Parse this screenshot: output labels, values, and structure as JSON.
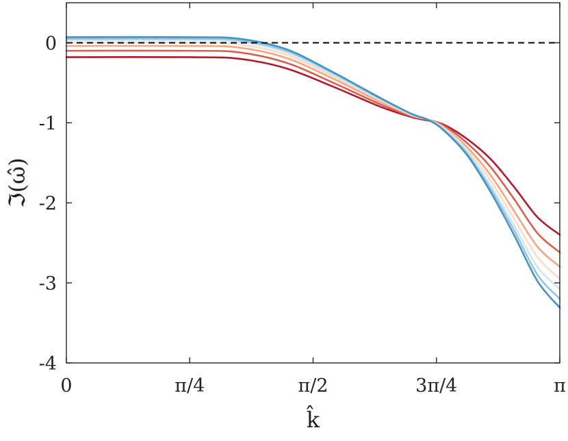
{
  "chart_data": {
    "type": "line",
    "xlabel": "k̂",
    "ylabel": "ℑ(ω̂)",
    "xlim": [
      0,
      3.14159
    ],
    "ylim": [
      -4,
      0.5
    ],
    "xticks": [
      {
        "value": 0,
        "label": "0"
      },
      {
        "value": 0.7854,
        "label": "π/4"
      },
      {
        "value": 1.5708,
        "label": "π/2"
      },
      {
        "value": 2.3562,
        "label": "3π/4"
      },
      {
        "value": 3.14159,
        "label": "π"
      }
    ],
    "yticks": [
      {
        "value": 0,
        "label": "0"
      },
      {
        "value": -1,
        "label": "-1"
      },
      {
        "value": -2,
        "label": "-2"
      },
      {
        "value": -3,
        "label": "-3"
      },
      {
        "value": -4,
        "label": "-4"
      }
    ],
    "grid": false,
    "reference_line": {
      "y": 0,
      "style": "dashed",
      "color": "#000000"
    },
    "series": [
      {
        "color": "#b2182b",
        "values": [
          [
            0,
            -0.18
          ],
          [
            0.785,
            -0.18
          ],
          [
            1.1,
            -0.2
          ],
          [
            1.4,
            -0.32
          ],
          [
            1.7,
            -0.55
          ],
          [
            2.0,
            -0.8
          ],
          [
            2.2,
            -0.93
          ],
          [
            2.3,
            -0.97
          ],
          [
            2.4,
            -1.02
          ],
          [
            2.55,
            -1.2
          ],
          [
            2.7,
            -1.45
          ],
          [
            2.85,
            -1.8
          ],
          [
            3.0,
            -2.18
          ],
          [
            3.142,
            -2.4
          ]
        ]
      },
      {
        "color": "#d6604d",
        "values": [
          [
            0,
            -0.1
          ],
          [
            0.785,
            -0.1
          ],
          [
            1.1,
            -0.12
          ],
          [
            1.4,
            -0.25
          ],
          [
            1.7,
            -0.5
          ],
          [
            2.0,
            -0.77
          ],
          [
            2.2,
            -0.92
          ],
          [
            2.3,
            -0.96
          ],
          [
            2.4,
            -1.03
          ],
          [
            2.55,
            -1.25
          ],
          [
            2.7,
            -1.55
          ],
          [
            2.85,
            -1.95
          ],
          [
            3.0,
            -2.38
          ],
          [
            3.142,
            -2.62
          ]
        ]
      },
      {
        "color": "#f4a582",
        "values": [
          [
            0,
            -0.04
          ],
          [
            0.785,
            -0.04
          ],
          [
            1.1,
            -0.06
          ],
          [
            1.4,
            -0.19
          ],
          [
            1.7,
            -0.45
          ],
          [
            2.0,
            -0.74
          ],
          [
            2.2,
            -0.91
          ],
          [
            2.3,
            -0.96
          ],
          [
            2.4,
            -1.05
          ],
          [
            2.55,
            -1.3
          ],
          [
            2.7,
            -1.65
          ],
          [
            2.85,
            -2.1
          ],
          [
            3.0,
            -2.55
          ],
          [
            3.142,
            -2.8
          ]
        ]
      },
      {
        "color": "#fddbc7",
        "values": [
          [
            0,
            0.0
          ],
          [
            0.785,
            0.0
          ],
          [
            1.1,
            -0.02
          ],
          [
            1.4,
            -0.15
          ],
          [
            1.7,
            -0.42
          ],
          [
            2.0,
            -0.72
          ],
          [
            2.2,
            -0.9
          ],
          [
            2.3,
            -0.96
          ],
          [
            2.4,
            -1.06
          ],
          [
            2.55,
            -1.33
          ],
          [
            2.7,
            -1.72
          ],
          [
            2.85,
            -2.2
          ],
          [
            3.0,
            -2.68
          ],
          [
            3.142,
            -2.95
          ]
        ]
      },
      {
        "color": "#d1e5f0",
        "values": [
          [
            0,
            0.03
          ],
          [
            0.785,
            0.03
          ],
          [
            1.1,
            0.01
          ],
          [
            1.4,
            -0.12
          ],
          [
            1.7,
            -0.4
          ],
          [
            2.0,
            -0.71
          ],
          [
            2.2,
            -0.9
          ],
          [
            2.3,
            -0.96
          ],
          [
            2.4,
            -1.07
          ],
          [
            2.55,
            -1.36
          ],
          [
            2.7,
            -1.78
          ],
          [
            2.85,
            -2.28
          ],
          [
            3.0,
            -2.8
          ],
          [
            3.142,
            -3.08
          ]
        ]
      },
      {
        "color": "#92c5de",
        "values": [
          [
            0,
            0.05
          ],
          [
            0.785,
            0.05
          ],
          [
            1.1,
            0.03
          ],
          [
            1.4,
            -0.1
          ],
          [
            1.7,
            -0.38
          ],
          [
            2.0,
            -0.7
          ],
          [
            2.2,
            -0.89
          ],
          [
            2.3,
            -0.96
          ],
          [
            2.4,
            -1.08
          ],
          [
            2.55,
            -1.38
          ],
          [
            2.7,
            -1.82
          ],
          [
            2.85,
            -2.34
          ],
          [
            3.0,
            -2.9
          ],
          [
            3.142,
            -3.2
          ]
        ]
      },
      {
        "color": "#4393c3",
        "values": [
          [
            0,
            0.07
          ],
          [
            0.785,
            0.07
          ],
          [
            1.1,
            0.05
          ],
          [
            1.4,
            -0.08
          ],
          [
            1.7,
            -0.37
          ],
          [
            2.0,
            -0.69
          ],
          [
            2.2,
            -0.89
          ],
          [
            2.3,
            -0.96
          ],
          [
            2.4,
            -1.09
          ],
          [
            2.55,
            -1.4
          ],
          [
            2.7,
            -1.86
          ],
          [
            2.85,
            -2.4
          ],
          [
            3.0,
            -2.98
          ],
          [
            3.142,
            -3.31
          ]
        ]
      }
    ]
  }
}
